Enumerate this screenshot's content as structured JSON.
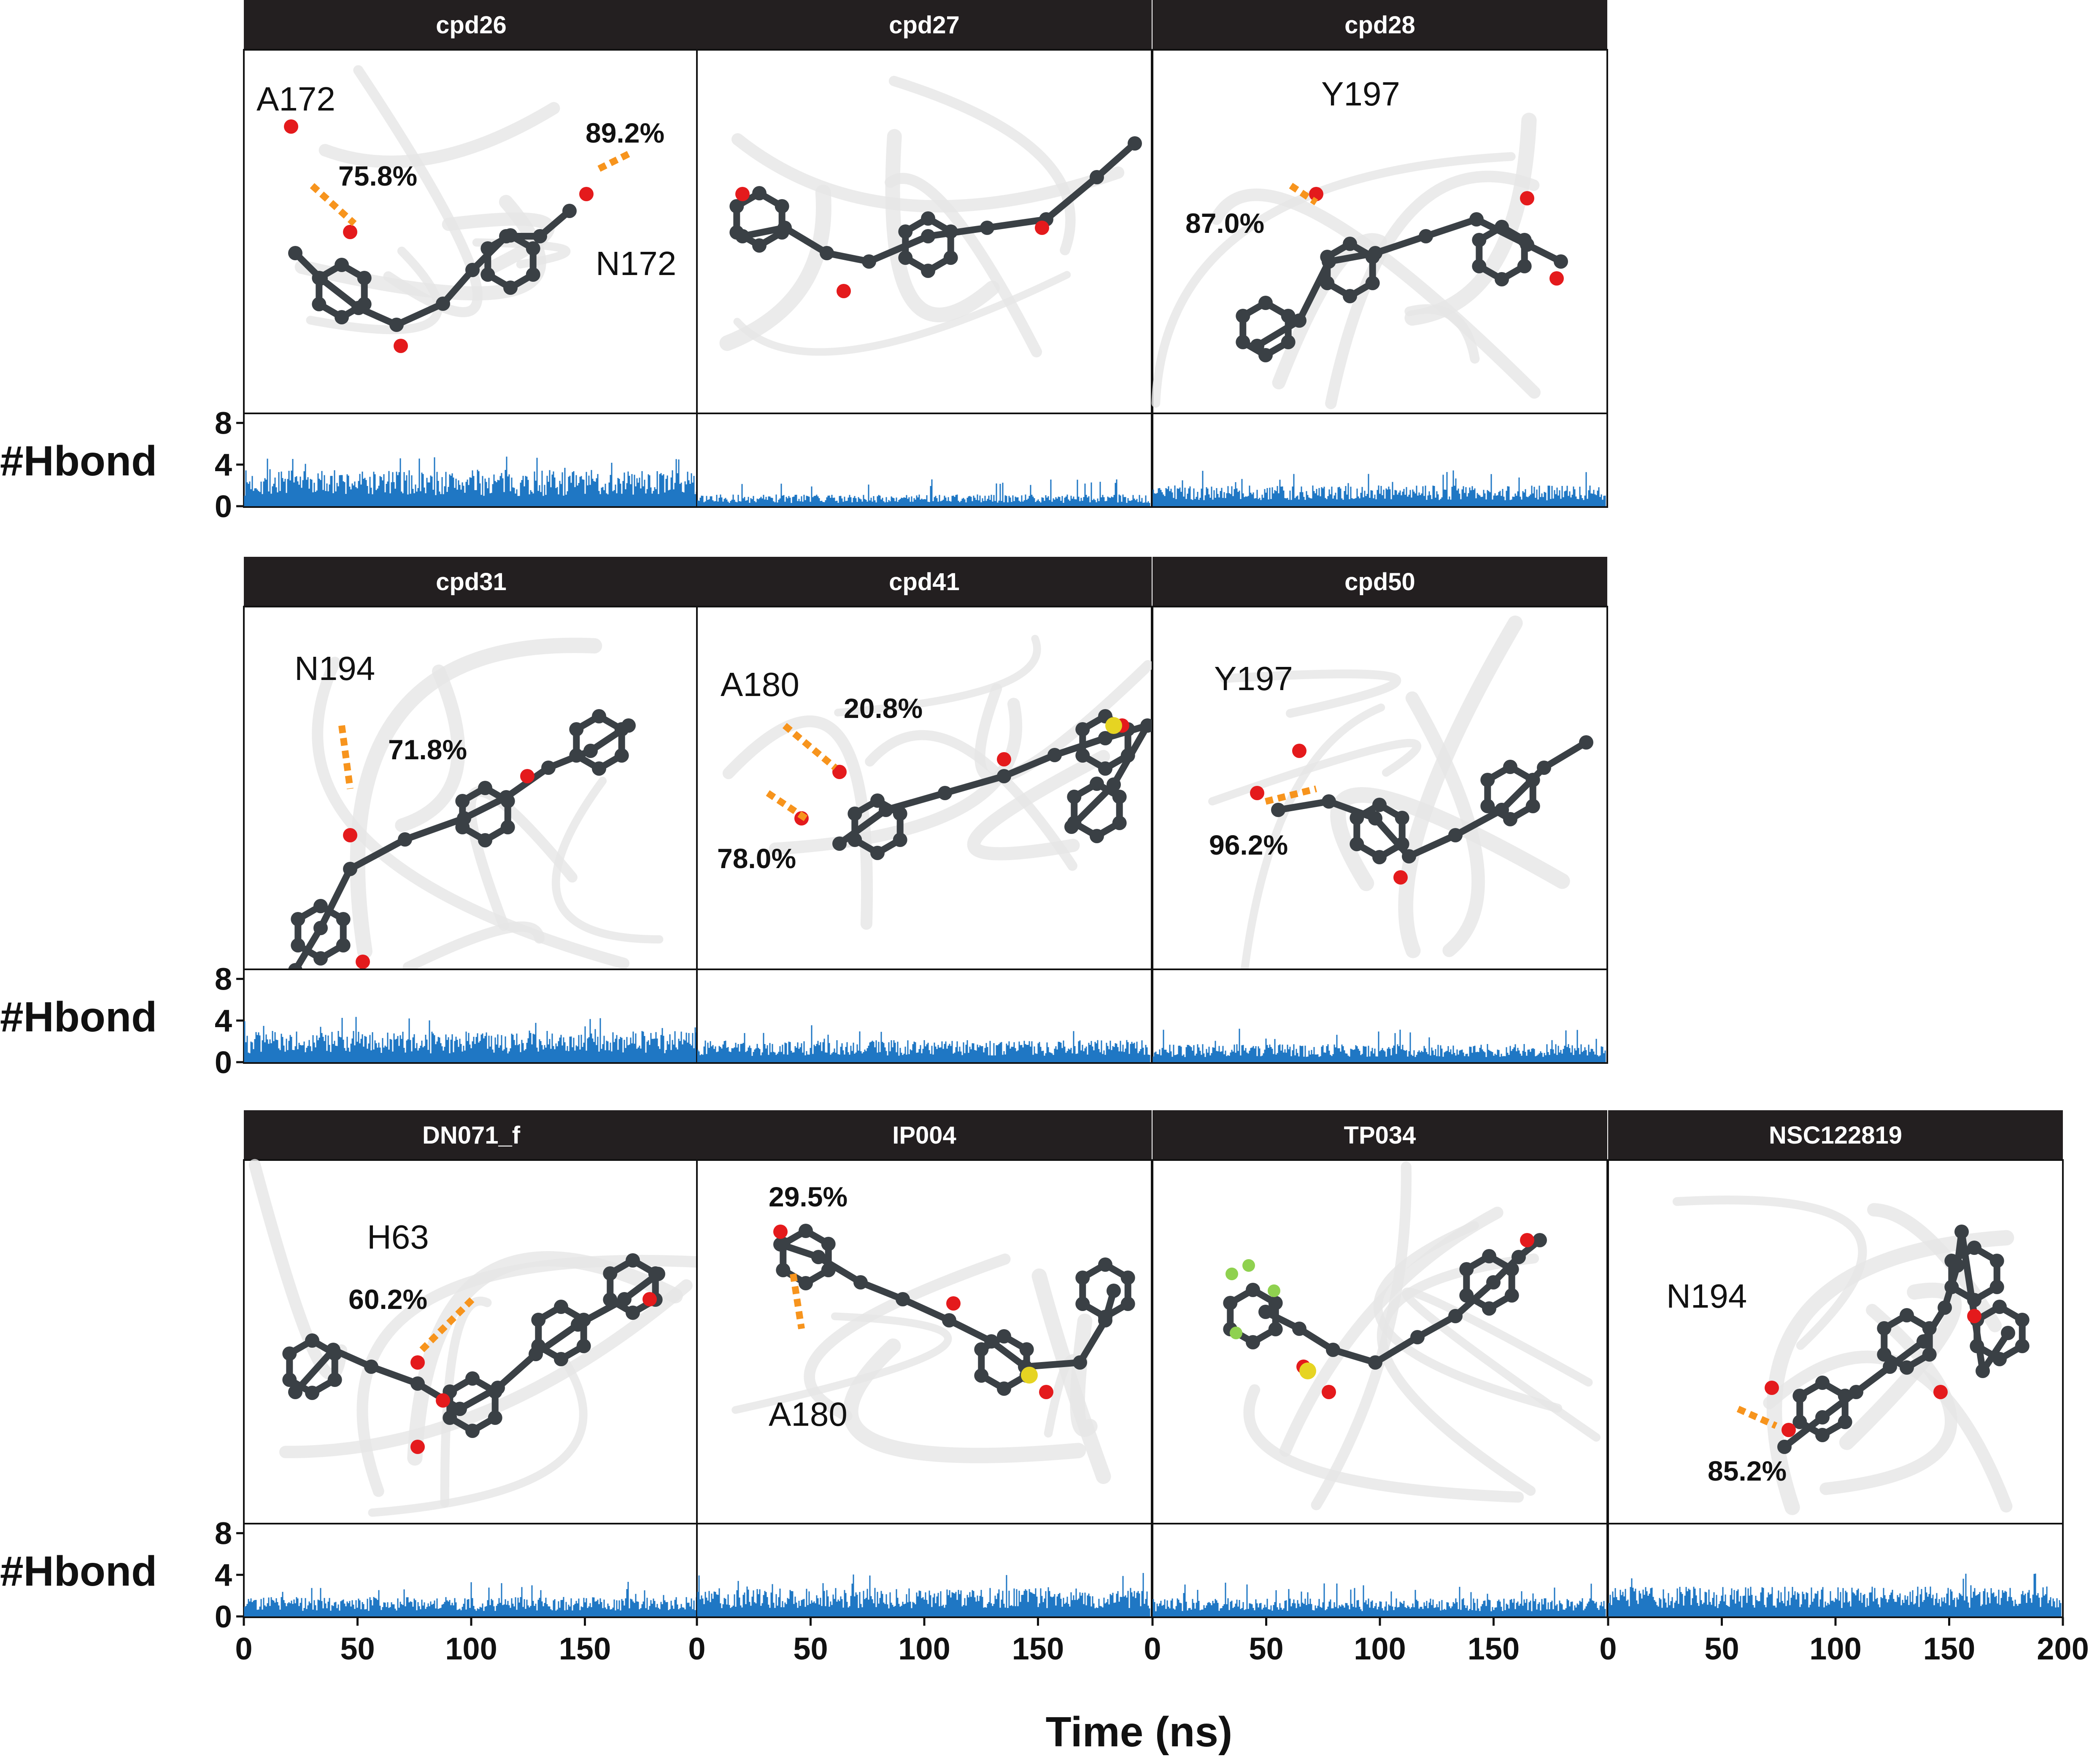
{
  "y_axis_label": "#Hbond",
  "x_axis_title": "Time (ns)",
  "y_ticks": [
    "0",
    "4",
    "8"
  ],
  "x_ticks": [
    "0",
    "50",
    "100",
    "150"
  ],
  "x_ticks_last": [
    "0",
    "50",
    "100",
    "150",
    "200"
  ],
  "colors": {
    "title_bar": "#231f20",
    "hbond_trace": "#1f77c4",
    "hbond_dash": "#f7941d",
    "carbon": "#3a4045",
    "oxygen": "#e41a1c",
    "nitrogen": "#3a4fa0",
    "sulfur": "#e6d422",
    "fluorine": "#8fd14f",
    "protein": "#e6e6e6"
  },
  "panels": [
    {
      "id": "cpd26",
      "title": "cpd26",
      "labels": [
        {
          "key": "res1",
          "text": "A172",
          "kind": "res"
        },
        {
          "key": "pct1",
          "text": "75.8%",
          "kind": "pct"
        },
        {
          "key": "pct2",
          "text": "89.2%",
          "kind": "pct"
        },
        {
          "key": "res2",
          "text": "N172",
          "kind": "res"
        }
      ]
    },
    {
      "id": "cpd27",
      "title": "cpd27",
      "labels": []
    },
    {
      "id": "cpd28",
      "title": "cpd28",
      "labels": [
        {
          "key": "res1",
          "text": "Y197",
          "kind": "res"
        },
        {
          "key": "pct1",
          "text": "87.0%",
          "kind": "pct"
        }
      ]
    },
    {
      "id": "cpd31",
      "title": "cpd31",
      "labels": [
        {
          "key": "res1",
          "text": "N194",
          "kind": "res"
        },
        {
          "key": "pct1",
          "text": "71.8%",
          "kind": "pct"
        }
      ]
    },
    {
      "id": "cpd41",
      "title": "cpd41",
      "labels": [
        {
          "key": "res1",
          "text": "A180",
          "kind": "res"
        },
        {
          "key": "pct1",
          "text": "20.8%",
          "kind": "pct"
        },
        {
          "key": "pct2",
          "text": "78.0%",
          "kind": "pct"
        }
      ]
    },
    {
      "id": "cpd50",
      "title": "cpd50",
      "labels": [
        {
          "key": "res1",
          "text": "Y197",
          "kind": "res"
        },
        {
          "key": "pct1",
          "text": "96.2%",
          "kind": "pct"
        }
      ]
    },
    {
      "id": "DN071_f",
      "title": "DN071_f",
      "labels": [
        {
          "key": "res1",
          "text": "H63",
          "kind": "res"
        },
        {
          "key": "pct1",
          "text": "60.2%",
          "kind": "pct"
        }
      ]
    },
    {
      "id": "IP004",
      "title": "IP004",
      "labels": [
        {
          "key": "pct1",
          "text": "29.5%",
          "kind": "pct"
        },
        {
          "key": "res1",
          "text": "A180",
          "kind": "res"
        }
      ]
    },
    {
      "id": "TP034",
      "title": "TP034",
      "labels": []
    },
    {
      "id": "NSC122819",
      "title": "NSC122819",
      "labels": [
        {
          "key": "res1",
          "text": "N194",
          "kind": "res"
        },
        {
          "key": "pct1",
          "text": "85.2%",
          "kind": "pct"
        }
      ]
    }
  ]
}
